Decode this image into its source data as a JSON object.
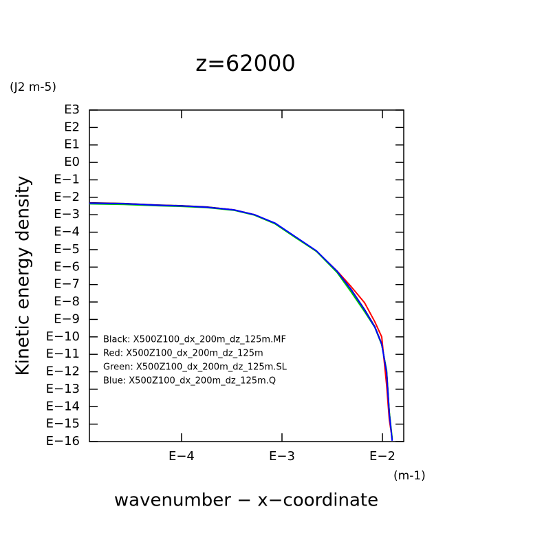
{
  "chart_data": {
    "type": "line",
    "title": "z=62000",
    "y_unit": "(J2 m-5)",
    "x_unit": "(m-1)",
    "ylabel": "Kinetic energy density",
    "xlabel": "wavenumber − x−coordinate",
    "xlog": true,
    "ylog": true,
    "xlim": [
      1.21e-05,
      0.0163
    ],
    "ylim": [
      1e-16,
      1000
    ],
    "xticks": [
      {
        "value": 0.0001,
        "label": "E−4"
      },
      {
        "value": 0.001,
        "label": "E−3"
      },
      {
        "value": 0.01,
        "label": "E−2"
      }
    ],
    "yticks": [
      {
        "value": 1000,
        "label": "E3"
      },
      {
        "value": 100,
        "label": "E2"
      },
      {
        "value": 10,
        "label": "E1"
      },
      {
        "value": 1,
        "label": "E0"
      },
      {
        "value": 0.1,
        "label": "E−1"
      },
      {
        "value": 0.01,
        "label": "E−2"
      },
      {
        "value": 0.001,
        "label": "E−3"
      },
      {
        "value": 0.0001,
        "label": "E−4"
      },
      {
        "value": 1e-05,
        "label": "E−5"
      },
      {
        "value": 1e-06,
        "label": "E−6"
      },
      {
        "value": 1e-07,
        "label": "E−7"
      },
      {
        "value": 1e-08,
        "label": "E−8"
      },
      {
        "value": 1e-09,
        "label": "E−9"
      },
      {
        "value": 1e-10,
        "label": "E−10"
      },
      {
        "value": 1e-11,
        "label": "E−11"
      },
      {
        "value": 1e-12,
        "label": "E−12"
      },
      {
        "value": 1e-13,
        "label": "E−13"
      },
      {
        "value": 1e-14,
        "label": "E−14"
      },
      {
        "value": 1e-15,
        "label": "E−15"
      },
      {
        "value": 1e-16,
        "label": "E−16"
      }
    ],
    "x": [
      1.21e-05,
      2.66e-05,
      5.85e-05,
      0.0001,
      0.000177,
      0.000332,
      0.000533,
      0.000855,
      0.00137,
      0.0022,
      0.00353,
      0.00484,
      0.00664,
      0.00841,
      0.00984,
      0.011,
      0.0117,
      0.0125
    ],
    "series": [
      {
        "name": "Black: X500Z100_dx_200m_dz_125m.MF",
        "color": "#000000",
        "values": [
          0.0048,
          0.0044,
          0.0036,
          0.0033,
          0.0028,
          0.0019,
          0.001,
          0.00032,
          5.1e-05,
          8.3e-06,
          5.5e-07,
          5.6e-08,
          3.7e-09,
          3.8e-10,
          4e-11,
          1e-12,
          4.6e-15,
          1.2e-16
        ]
      },
      {
        "name": "Red: X500Z100_dx_200m_dz_125m",
        "color": "#ff0000",
        "values": [
          0.0047,
          0.0043,
          0.0035,
          0.0032,
          0.0027,
          0.0019,
          0.001,
          0.00031,
          5e-05,
          8e-06,
          6e-07,
          8e-08,
          9.1e-09,
          7.3e-10,
          1e-10,
          1.7e-13,
          1.8e-15,
          1.5e-16
        ]
      },
      {
        "name": "Green: X500Z100_dx_200m_dz_125m.SL",
        "color": "#00cc00",
        "values": [
          0.0042,
          0.0039,
          0.0033,
          0.003,
          0.0026,
          0.0018,
          0.00095,
          0.0003,
          4.8e-05,
          8e-06,
          5e-07,
          4e-08,
          2.8e-09,
          3.5e-10,
          3.5e-11,
          1.2e-12,
          5e-15,
          1.5e-16
        ]
      },
      {
        "name": "Blue: X500Z100_dx_200m_dz_125m.Q",
        "color": "#0000ff",
        "values": [
          0.0046,
          0.0043,
          0.0035,
          0.0032,
          0.0027,
          0.0019,
          0.001,
          0.00033,
          5.4e-05,
          8.6e-06,
          5.8e-07,
          5.4e-08,
          3.5e-09,
          3.6e-10,
          3.8e-11,
          9e-13,
          4e-15,
          1.1e-16
        ]
      }
    ]
  }
}
